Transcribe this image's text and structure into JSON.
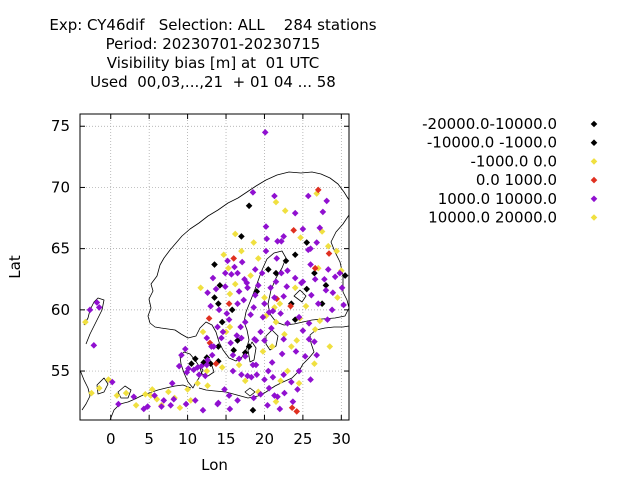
{
  "chart_data": {
    "type": "scatter",
    "title_lines": [
      "Exp: CY46dif   Selection: ALL    284 stations",
      "Period: 20230701-20230715",
      "Visibility bias [m] at  01 UTC",
      "Used  00,03,...,21  + 01 04 ... 58"
    ],
    "xlabel": "Lon",
    "ylabel": "Lat",
    "xlim": [
      -4,
      31
    ],
    "ylim": [
      51,
      76
    ],
    "xticks": [
      0,
      5,
      10,
      15,
      20,
      25,
      30
    ],
    "yticks": [
      55,
      60,
      65,
      70,
      75
    ],
    "grid": true,
    "legend_position": "right",
    "series": [
      {
        "name": "-20000.0-10000.0",
        "color": "#000000",
        "points": []
      },
      {
        "name": "-10000.0 -1000.0",
        "color": "#000000",
        "points": [
          [
            10.5,
            55.6
          ],
          [
            12.1,
            55.7
          ],
          [
            13.0,
            55.6
          ],
          [
            12.5,
            56.1
          ],
          [
            14.0,
            57.0
          ],
          [
            14.5,
            59.0
          ],
          [
            14.0,
            60.5
          ],
          [
            13.5,
            61.0
          ],
          [
            14.2,
            62.0
          ],
          [
            15.8,
            60.0
          ],
          [
            17.5,
            56.5
          ],
          [
            18.0,
            57.0
          ],
          [
            19.0,
            61.5
          ],
          [
            20.5,
            63.3
          ],
          [
            21.5,
            63.0
          ],
          [
            22.8,
            64.0
          ],
          [
            24.0,
            64.5
          ],
          [
            25.5,
            65.5
          ],
          [
            18.0,
            68.5
          ],
          [
            16.0,
            56.7
          ],
          [
            18.5,
            51.8
          ],
          [
            23.5,
            60.5
          ],
          [
            24.0,
            59.2
          ],
          [
            25.5,
            61.7
          ],
          [
            26.5,
            63.0
          ],
          [
            28.0,
            62.0
          ],
          [
            30.5,
            62.8
          ],
          [
            27.5,
            60.5
          ],
          [
            16.5,
            57.5
          ],
          [
            14.0,
            55.8
          ],
          [
            11.0,
            56.0
          ],
          [
            13.5,
            63.7
          ],
          [
            17.0,
            66.0
          ]
        ]
      },
      {
        "name": "-1000.0 0.0",
        "color": "#f0e040",
        "points": [
          [
            -3.3,
            59.0
          ],
          [
            -2.5,
            53.2
          ],
          [
            -1.5,
            53.6
          ],
          [
            -0.3,
            54.3
          ],
          [
            0.8,
            53.0
          ],
          [
            2.0,
            53.2
          ],
          [
            3.3,
            52.2
          ],
          [
            4.5,
            53.1
          ],
          [
            5.2,
            53.0
          ],
          [
            5.4,
            53.5
          ],
          [
            6.0,
            52.7
          ],
          [
            6.6,
            52.2
          ],
          [
            7.5,
            53.3
          ],
          [
            8.3,
            52.8
          ],
          [
            9.0,
            52.0
          ],
          [
            10.0,
            53.5
          ],
          [
            10.4,
            52.6
          ],
          [
            11.3,
            54.0
          ],
          [
            12.6,
            53.8
          ],
          [
            12.5,
            55.0
          ],
          [
            14.5,
            55.3
          ],
          [
            15.0,
            58.2
          ],
          [
            15.5,
            61.3
          ],
          [
            16.2,
            62.1
          ],
          [
            15.3,
            63.4
          ],
          [
            14.7,
            64.5
          ],
          [
            17.0,
            64.8
          ],
          [
            18.2,
            62.8
          ],
          [
            19.2,
            64.2
          ],
          [
            20.2,
            59.5
          ],
          [
            21.3,
            60.2
          ],
          [
            22.0,
            60.5
          ],
          [
            21.5,
            59.0
          ],
          [
            22.6,
            58.0
          ],
          [
            23.5,
            57.0
          ],
          [
            24.6,
            59.3
          ],
          [
            25.4,
            60.3
          ],
          [
            26.6,
            58.4
          ],
          [
            27.2,
            59.1
          ],
          [
            28.5,
            57.0
          ],
          [
            29.5,
            61.0
          ],
          [
            30.0,
            63.2
          ],
          [
            29.4,
            64.8
          ],
          [
            28.3,
            65.2
          ],
          [
            27.5,
            66.4
          ],
          [
            26.8,
            69.5
          ],
          [
            24.7,
            65.9
          ],
          [
            21.5,
            68.8
          ],
          [
            22.7,
            68.1
          ],
          [
            12.0,
            58.2
          ],
          [
            11.7,
            61.8
          ],
          [
            16.7,
            55.5
          ],
          [
            19.8,
            56.6
          ],
          [
            21.0,
            57.0
          ],
          [
            22.1,
            54.2
          ],
          [
            23.0,
            55.0
          ],
          [
            24.5,
            54.0
          ],
          [
            26.5,
            55.6
          ],
          [
            24.2,
            57.5
          ],
          [
            19.2,
            53.3
          ],
          [
            21.5,
            52.5
          ],
          [
            17.5,
            54.2
          ],
          [
            15.5,
            58.6
          ],
          [
            20.0,
            61.0
          ],
          [
            18.6,
            65.5
          ],
          [
            16.2,
            66.2
          ],
          [
            24.0,
            61.8
          ],
          [
            27.0,
            63.4
          ]
        ]
      },
      {
        "name": "0.0 1000.0",
        "color": "#e03020",
        "points": [
          [
            12.8,
            59.3
          ],
          [
            12.9,
            57.3
          ],
          [
            15.4,
            60.5
          ],
          [
            16.0,
            64.2
          ],
          [
            21.6,
            60.9
          ],
          [
            23.4,
            60.3
          ],
          [
            23.8,
            66.5
          ],
          [
            26.6,
            63.4
          ],
          [
            27.0,
            69.8
          ],
          [
            28.4,
            64.6
          ],
          [
            23.6,
            52.0
          ],
          [
            24.2,
            51.7
          ],
          [
            13.7,
            55.6
          ]
        ]
      },
      {
        "name": "1000.0 10000.0",
        "color": "#9010d0",
        "points": [
          [
            -2.7,
            60.0
          ],
          [
            -1.8,
            60.6
          ],
          [
            -1.5,
            60.2
          ],
          [
            -2.2,
            57.1
          ],
          [
            1.0,
            52.3
          ],
          [
            0.2,
            54.1
          ],
          [
            3.0,
            52.9
          ],
          [
            4.3,
            51.9
          ],
          [
            4.8,
            52.1
          ],
          [
            6.6,
            52.1
          ],
          [
            6.9,
            52.6
          ],
          [
            7.8,
            52.2
          ],
          [
            5.7,
            53.0
          ],
          [
            8.0,
            54.0
          ],
          [
            8.9,
            55.4
          ],
          [
            9.2,
            56.3
          ],
          [
            9.7,
            56.8
          ],
          [
            9.9,
            54.9
          ],
          [
            10.1,
            55.2
          ],
          [
            10.8,
            55.1
          ],
          [
            11.3,
            55.3
          ],
          [
            11.5,
            54.7
          ],
          [
            12.3,
            54.6
          ],
          [
            12.6,
            55.9
          ],
          [
            13.2,
            56.3
          ],
          [
            13.4,
            57.0
          ],
          [
            14.4,
            57.7
          ],
          [
            13.9,
            58.6
          ],
          [
            14.6,
            58.2
          ],
          [
            15.1,
            59.7
          ],
          [
            14.1,
            60.0
          ],
          [
            15.4,
            59.2
          ],
          [
            13.0,
            60.3
          ],
          [
            12.6,
            61.4
          ],
          [
            13.7,
            61.7
          ],
          [
            14.9,
            61.9
          ],
          [
            13.3,
            62.6
          ],
          [
            15.7,
            62.9
          ],
          [
            16.1,
            63.5
          ],
          [
            16.5,
            63.0
          ],
          [
            15.2,
            64.0
          ],
          [
            17.1,
            63.9
          ],
          [
            17.4,
            62.5
          ],
          [
            17.8,
            61.8
          ],
          [
            18.6,
            60.2
          ],
          [
            18.2,
            59.6
          ],
          [
            17.5,
            59.0
          ],
          [
            16.9,
            58.6
          ],
          [
            17.0,
            57.7
          ],
          [
            15.6,
            57.3
          ],
          [
            15.9,
            56.3
          ],
          [
            16.4,
            57.9
          ],
          [
            18.7,
            57.6
          ],
          [
            17.8,
            54.6
          ],
          [
            18.3,
            54.5
          ],
          [
            19.0,
            54.7
          ],
          [
            18.9,
            55.5
          ],
          [
            20.0,
            54.3
          ],
          [
            20.5,
            55.0
          ],
          [
            21.1,
            54.5
          ],
          [
            21.0,
            55.7
          ],
          [
            22.5,
            54.7
          ],
          [
            19.5,
            53.1
          ],
          [
            20.6,
            53.6
          ],
          [
            21.3,
            53.0
          ],
          [
            22.6,
            53.2
          ],
          [
            23.7,
            52.5
          ],
          [
            20.4,
            52.2
          ],
          [
            22.0,
            51.9
          ],
          [
            21.7,
            52.9
          ],
          [
            16.5,
            52.6
          ],
          [
            18.6,
            52.8
          ],
          [
            11.0,
            52.6
          ],
          [
            14.0,
            52.4
          ],
          [
            12.0,
            51.8
          ],
          [
            9.8,
            52.3
          ],
          [
            8.2,
            52.7
          ],
          [
            23.5,
            54.1
          ],
          [
            24.5,
            55.0
          ],
          [
            25.3,
            56.2
          ],
          [
            26.8,
            56.3
          ],
          [
            26.5,
            57.4
          ],
          [
            25.0,
            58.3
          ],
          [
            25.8,
            58.9
          ],
          [
            23.0,
            58.9
          ],
          [
            22.5,
            57.6
          ],
          [
            24.5,
            59.4
          ],
          [
            22.1,
            59.7
          ],
          [
            21.1,
            59.9
          ],
          [
            22.5,
            61.1
          ],
          [
            22.9,
            61.9
          ],
          [
            24.0,
            62.6
          ],
          [
            25.0,
            62.3
          ],
          [
            26.0,
            63.7
          ],
          [
            25.7,
            64.9
          ],
          [
            24.8,
            62.2
          ],
          [
            26.6,
            62.5
          ],
          [
            28.0,
            61.6
          ],
          [
            28.9,
            61.4
          ],
          [
            29.2,
            62.7
          ],
          [
            29.8,
            63.0
          ],
          [
            28.3,
            63.3
          ],
          [
            27.8,
            62.5
          ],
          [
            30.1,
            61.8
          ],
          [
            30.3,
            60.4
          ],
          [
            28.8,
            60.0
          ],
          [
            27.0,
            60.5
          ],
          [
            28.2,
            59.2
          ],
          [
            26.1,
            61.2
          ],
          [
            26.8,
            65.5
          ],
          [
            25.0,
            66.6
          ],
          [
            24.0,
            67.9
          ],
          [
            27.2,
            66.7
          ],
          [
            26.0,
            65.0
          ],
          [
            28.1,
            68.9
          ],
          [
            27.6,
            68.0
          ],
          [
            25.7,
            69.3
          ],
          [
            21.3,
            69.3
          ],
          [
            18.5,
            69.6
          ],
          [
            20.2,
            66.8
          ],
          [
            21.7,
            65.6
          ],
          [
            20.2,
            64.8
          ],
          [
            22.2,
            65.6
          ],
          [
            20.3,
            65.8
          ],
          [
            22.5,
            66.0
          ],
          [
            21.6,
            64.2
          ],
          [
            19.7,
            63.0
          ],
          [
            18.8,
            63.3
          ],
          [
            17.7,
            62.2
          ],
          [
            19.2,
            62.0
          ],
          [
            20.8,
            61.8
          ],
          [
            20.0,
            60.5
          ],
          [
            21.3,
            61.0
          ],
          [
            20.6,
            59.8
          ],
          [
            19.8,
            59.4
          ],
          [
            20.9,
            58.5
          ],
          [
            19.5,
            58.2
          ],
          [
            18.9,
            57.5
          ],
          [
            18.5,
            55.5
          ],
          [
            17.5,
            56.2
          ],
          [
            16.7,
            56.0
          ],
          [
            15.9,
            55.0
          ],
          [
            14.8,
            53.5
          ],
          [
            15.4,
            53.0
          ],
          [
            15.5,
            51.9
          ],
          [
            13.9,
            52.3
          ],
          [
            12.5,
            55.5
          ],
          [
            11.8,
            55.4
          ],
          [
            13.1,
            57.0
          ],
          [
            20.1,
            74.5
          ],
          [
            20.0,
            57.5
          ],
          [
            23.0,
            63.2
          ],
          [
            22.2,
            63.0
          ],
          [
            21.5,
            62.3
          ],
          [
            17.3,
            60.8
          ],
          [
            16.7,
            61.5
          ],
          [
            16.5,
            60.5
          ],
          [
            18.8,
            61.2
          ],
          [
            14.9,
            63.0
          ],
          [
            12.5,
            57.7
          ],
          [
            17.0,
            54.7
          ],
          [
            22.3,
            56.4
          ],
          [
            24.1,
            56.6
          ],
          [
            24.3,
            53.5
          ],
          [
            26.0,
            54.3
          ],
          [
            25.8,
            57.6
          ]
        ]
      },
      {
        "name": "10000.0 20000.0",
        "color": "#f0e040",
        "points": []
      }
    ]
  }
}
